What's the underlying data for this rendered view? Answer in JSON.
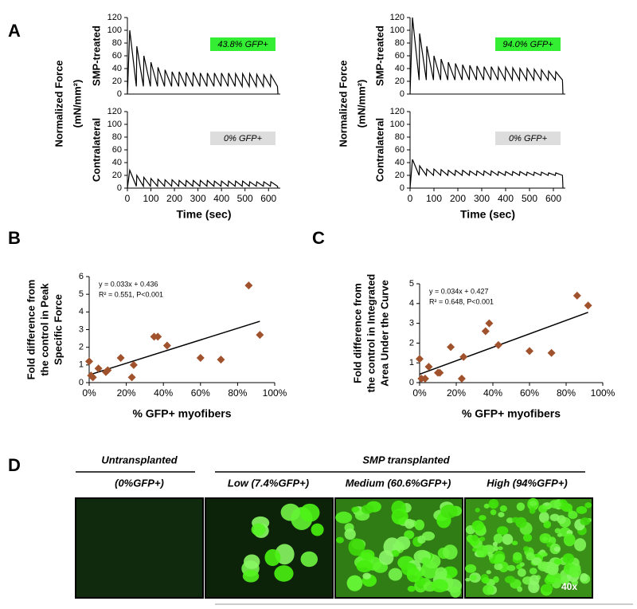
{
  "panel_labels": [
    "A",
    "B",
    "C",
    "D"
  ],
  "chart_data": [
    {
      "type": "line",
      "ylabel": "SMP-treated",
      "panel_ylabel": [
        "Normalized Force",
        "(mN/mm²)"
      ],
      "annotation": {
        "text": "43.8% GFP+",
        "color": "#33ee33"
      },
      "xlim": [
        0,
        650
      ],
      "ylim": [
        0,
        120
      ],
      "yticks": [
        0,
        20,
        40,
        60,
        80,
        100,
        120
      ],
      "x": [
        0,
        10,
        38,
        40,
        68,
        70,
        98,
        100,
        128,
        130,
        158,
        160,
        188,
        190,
        218,
        220,
        248,
        250,
        278,
        280,
        308,
        310,
        338,
        340,
        368,
        370,
        398,
        400,
        428,
        430,
        458,
        460,
        488,
        490,
        518,
        520,
        548,
        550,
        578,
        580,
        608,
        610,
        638,
        640
      ],
      "values": [
        0,
        100,
        12,
        75,
        12,
        60,
        12,
        50,
        12,
        42,
        12,
        38,
        12,
        35,
        12,
        35,
        12,
        34,
        12,
        34,
        12,
        33,
        12,
        33,
        12,
        33,
        12,
        33,
        12,
        33,
        12,
        32,
        12,
        32,
        12,
        32,
        12,
        31,
        12,
        30,
        12,
        30,
        12,
        0
      ]
    },
    {
      "type": "line",
      "ylabel": "Contralateral",
      "xlabel": "Time (sec)",
      "annotation": {
        "text": "0% GFP+",
        "color": "#dddddd"
      },
      "xlim": [
        0,
        650
      ],
      "ylim": [
        0,
        120
      ],
      "yticks": [
        0,
        20,
        40,
        60,
        80,
        100,
        120
      ],
      "xticks": [
        0,
        100,
        200,
        300,
        400,
        500,
        600
      ],
      "x": [
        0,
        10,
        38,
        40,
        68,
        70,
        98,
        100,
        128,
        130,
        158,
        160,
        188,
        190,
        218,
        220,
        248,
        250,
        278,
        280,
        308,
        310,
        338,
        340,
        368,
        370,
        398,
        400,
        428,
        430,
        458,
        460,
        488,
        490,
        518,
        520,
        548,
        550,
        578,
        580,
        608,
        610,
        638,
        640
      ],
      "values": [
        0,
        28,
        3,
        20,
        3,
        17,
        3,
        15,
        3,
        14,
        3,
        13,
        3,
        13,
        3,
        12,
        3,
        12,
        3,
        12,
        3,
        12,
        3,
        12,
        3,
        11,
        3,
        11,
        3,
        11,
        3,
        11,
        3,
        11,
        3,
        10,
        3,
        10,
        3,
        10,
        3,
        10,
        3,
        0
      ]
    },
    {
      "type": "line",
      "ylabel": "SMP-treated",
      "panel_ylabel": [
        "Normalized Force",
        "(mN/mm²)"
      ],
      "annotation": {
        "text": "94.0% GFP+",
        "color": "#33ee33"
      },
      "xlim": [
        0,
        650
      ],
      "ylim": [
        0,
        120
      ],
      "yticks": [
        0,
        20,
        40,
        60,
        80,
        100,
        120
      ],
      "x": [
        0,
        10,
        38,
        40,
        68,
        70,
        98,
        100,
        128,
        130,
        158,
        160,
        188,
        190,
        218,
        220,
        248,
        250,
        278,
        280,
        308,
        310,
        338,
        340,
        368,
        370,
        398,
        400,
        428,
        430,
        458,
        460,
        488,
        490,
        518,
        520,
        548,
        550,
        578,
        580,
        608,
        610,
        638,
        640
      ],
      "values": [
        0,
        120,
        22,
        95,
        22,
        75,
        22,
        60,
        22,
        55,
        22,
        50,
        22,
        48,
        22,
        46,
        22,
        45,
        22,
        44,
        22,
        43,
        22,
        43,
        22,
        42,
        22,
        42,
        22,
        41,
        22,
        40,
        22,
        40,
        22,
        39,
        22,
        38,
        22,
        36,
        22,
        35,
        22,
        0
      ]
    },
    {
      "type": "line",
      "ylabel": "Contralateral",
      "xlabel": "Time (sec)",
      "annotation": {
        "text": "0% GFP+",
        "color": "#dddddd"
      },
      "xlim": [
        0,
        650
      ],
      "ylim": [
        0,
        120
      ],
      "yticks": [
        0,
        20,
        40,
        60,
        80,
        100,
        120
      ],
      "xticks": [
        0,
        100,
        200,
        300,
        400,
        500,
        600
      ],
      "x": [
        0,
        10,
        38,
        40,
        68,
        70,
        98,
        100,
        128,
        130,
        158,
        160,
        188,
        190,
        218,
        220,
        248,
        250,
        278,
        280,
        308,
        310,
        338,
        340,
        368,
        370,
        398,
        400,
        428,
        430,
        458,
        460,
        488,
        490,
        518,
        520,
        548,
        550,
        578,
        580,
        608,
        610,
        638,
        640
      ],
      "values": [
        0,
        45,
        20,
        35,
        20,
        30,
        20,
        30,
        20,
        29,
        20,
        28,
        20,
        28,
        20,
        28,
        20,
        27,
        20,
        27,
        20,
        27,
        20,
        27,
        20,
        26,
        20,
        26,
        20,
        26,
        20,
        26,
        20,
        25,
        20,
        25,
        20,
        25,
        20,
        24,
        20,
        24,
        20,
        0
      ]
    },
    {
      "type": "scatter",
      "xlabel": "% GFP+ myofibers",
      "ylabel": [
        "Fold difference from",
        "the control in Peak",
        "Specific Force"
      ],
      "equation": "y = 0.033x + 0.436",
      "stats": "R² = 0.551, P<0.001",
      "slope": 0.033,
      "intercept": 0.436,
      "color": "#a0522d",
      "xlim": [
        0,
        100
      ],
      "ylim": [
        0,
        6
      ],
      "yticks": [
        0,
        1,
        2,
        3,
        4,
        5,
        6
      ],
      "xticks": [
        {
          "value": 0,
          "label": "0%"
        },
        {
          "value": 20,
          "label": "20%"
        },
        {
          "value": 40,
          "label": "40%"
        },
        {
          "value": 60,
          "label": "60%"
        },
        {
          "value": 80,
          "label": "80%"
        },
        {
          "value": 100,
          "label": "100%"
        }
      ],
      "x": [
        0,
        1,
        2,
        5,
        9,
        10,
        17,
        23,
        24,
        35,
        37,
        42,
        60,
        71,
        86,
        92
      ],
      "values": [
        1.2,
        0.4,
        0.3,
        0.8,
        0.6,
        0.7,
        1.4,
        0.3,
        1.0,
        2.6,
        2.6,
        2.1,
        1.4,
        1.3,
        5.5,
        2.7
      ]
    },
    {
      "type": "scatter",
      "xlabel": "% GFP+ myofibers",
      "ylabel": [
        "Fold difference from",
        "the control in Integrated",
        "Area Under the Curve"
      ],
      "equation": "y = 0.034x + 0.427",
      "stats": "R² = 0.648, P<0.001",
      "slope": 0.034,
      "intercept": 0.427,
      "color": "#a0522d",
      "xlim": [
        0,
        100
      ],
      "ylim": [
        0,
        5
      ],
      "yticks": [
        0,
        1,
        2,
        3,
        4,
        5
      ],
      "xticks": [
        {
          "value": 0,
          "label": "0%"
        },
        {
          "value": 20,
          "label": "20%"
        },
        {
          "value": 40,
          "label": "40%"
        },
        {
          "value": 60,
          "label": "60%"
        },
        {
          "value": 80,
          "label": "80%"
        },
        {
          "value": 100,
          "label": "100%"
        }
      ],
      "x": [
        0,
        1,
        3,
        5,
        10,
        11,
        17,
        23,
        24,
        36,
        38,
        43,
        60,
        72,
        86,
        92
      ],
      "values": [
        1.2,
        0.2,
        0.2,
        0.8,
        0.5,
        0.5,
        1.8,
        0.2,
        1.3,
        2.6,
        3.0,
        1.9,
        1.6,
        1.5,
        4.4,
        3.9
      ]
    }
  ],
  "panel_d": {
    "untransplanted": "Untransplanted",
    "control": "(0%GFP+)",
    "transplanted": "SMP transplanted",
    "low": "Low (7.4%GFP+)",
    "medium": "Medium (60.6%GFP+)",
    "high": "High (94%GFP+)",
    "magnification": "40x"
  }
}
